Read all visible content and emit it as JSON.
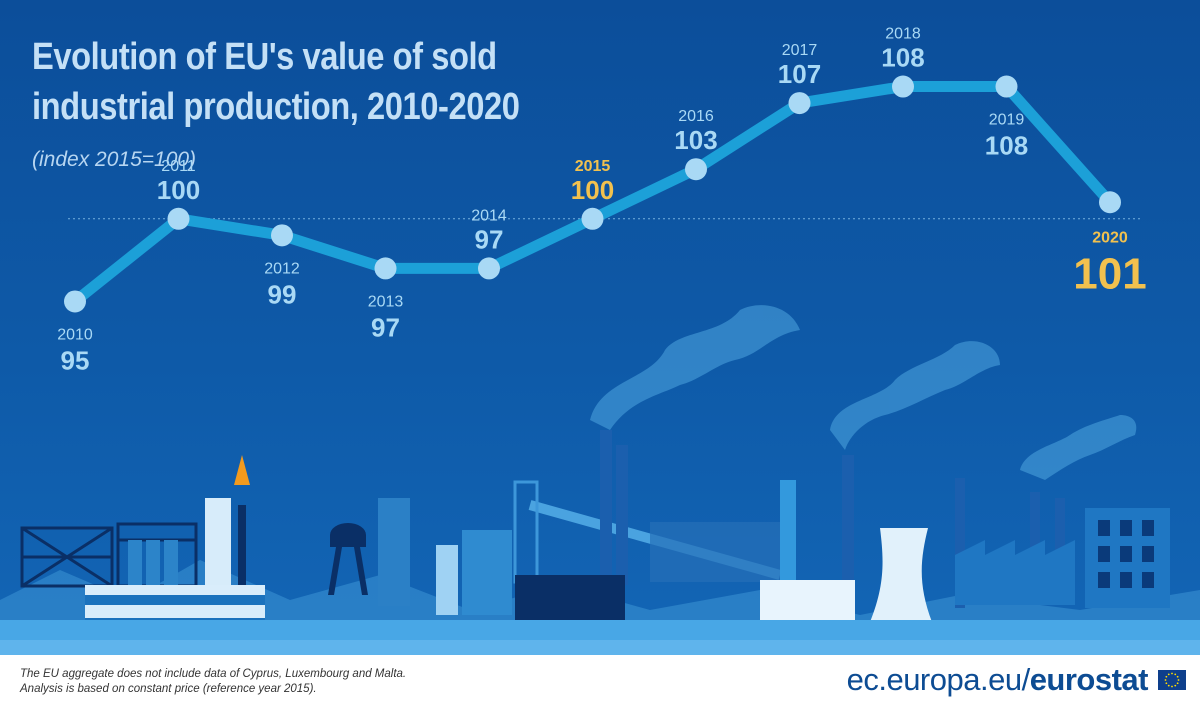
{
  "title": "Evolution of EU's value of sold industrial production, 2010-2020",
  "subtitle": "(index 2015=100)",
  "chart_data": {
    "type": "line",
    "title": "Evolution of EU's value of sold industrial production, 2010-2020",
    "subtitle": "(index 2015=100)",
    "x": [
      "2010",
      "2011",
      "2012",
      "2013",
      "2014",
      "2015",
      "2016",
      "2017",
      "2018",
      "2019",
      "2020"
    ],
    "series": [
      {
        "values": [
          95,
          100,
          99,
          97,
          97,
          100,
          103,
          107,
          108,
          108,
          101
        ]
      }
    ],
    "highlighted_years": [
      "2015",
      "2020"
    ],
    "reference_line": 100,
    "ylim": [
      94,
      109
    ],
    "grid": false,
    "legend": "none",
    "colors": {
      "line": "#1ca0d8",
      "point": "#a9d9f5",
      "label": "#a9d9f5",
      "highlight": "#f2c14e",
      "reference": "#8ec8ee"
    }
  },
  "footer": {
    "note_line1": "The EU aggregate does not include data of Cyprus, Luxembourg and Malta.",
    "note_line2": "Analysis is based on constant price (reference year 2015).",
    "source_prefix": "ec.europa.eu/",
    "source_brand": "eurostat"
  },
  "logo": {
    "name": "eu-flag-icon",
    "colors": {
      "field": "#0e3f8c",
      "stars": "#ffdd00"
    }
  }
}
